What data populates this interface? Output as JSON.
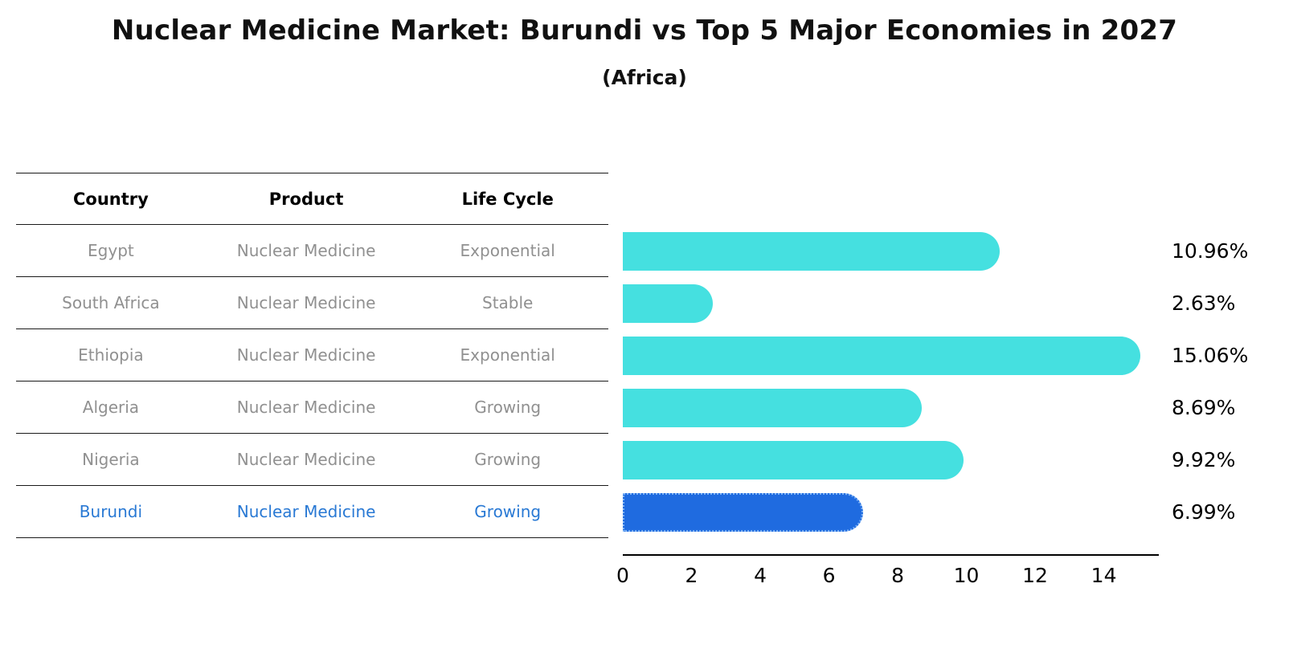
{
  "title": "Nuclear Medicine Market: Burundi vs Top 5 Major Economies in 2027",
  "subtitle": "(Africa)",
  "table": {
    "headers": [
      "Country",
      "Product",
      "Life Cycle"
    ],
    "rows": [
      {
        "country": "Egypt",
        "product": "Nuclear Medicine",
        "life_cycle": "Exponential"
      },
      {
        "country": "South Africa",
        "product": "Nuclear Medicine",
        "life_cycle": "Stable"
      },
      {
        "country": "Ethiopia",
        "product": "Nuclear Medicine",
        "life_cycle": "Exponential"
      },
      {
        "country": "Algeria",
        "product": "Nuclear Medicine",
        "life_cycle": "Growing"
      },
      {
        "country": "Nigeria",
        "product": "Nuclear Medicine",
        "life_cycle": "Growing"
      },
      {
        "country": "Burundi",
        "product": "Nuclear Medicine",
        "life_cycle": "Growing"
      }
    ]
  },
  "chart_data": {
    "type": "bar",
    "orientation": "horizontal",
    "title": "Nuclear Medicine Market: Burundi vs Top 5 Major Economies in 2027",
    "subtitle": "(Africa)",
    "categories": [
      "Egypt",
      "South Africa",
      "Ethiopia",
      "Algeria",
      "Nigeria",
      "Burundi"
    ],
    "values": [
      10.96,
      2.63,
      15.06,
      8.69,
      9.92,
      6.99
    ],
    "value_labels": [
      "10.96%",
      "2.63%",
      "15.06%",
      "8.69%",
      "9.92%",
      "6.99%"
    ],
    "x_ticks": [
      0,
      2,
      4,
      6,
      8,
      10,
      12,
      14
    ],
    "xlim": [
      0,
      15.6
    ],
    "xlabel": "",
    "ylabel": "",
    "grid": false,
    "legend": false,
    "bar_color": "#45e0e0",
    "highlight_index": 5,
    "highlight_color": "#1f6be0",
    "highlight_text_color": "#2979d4",
    "muted_text_color": "#909090"
  }
}
